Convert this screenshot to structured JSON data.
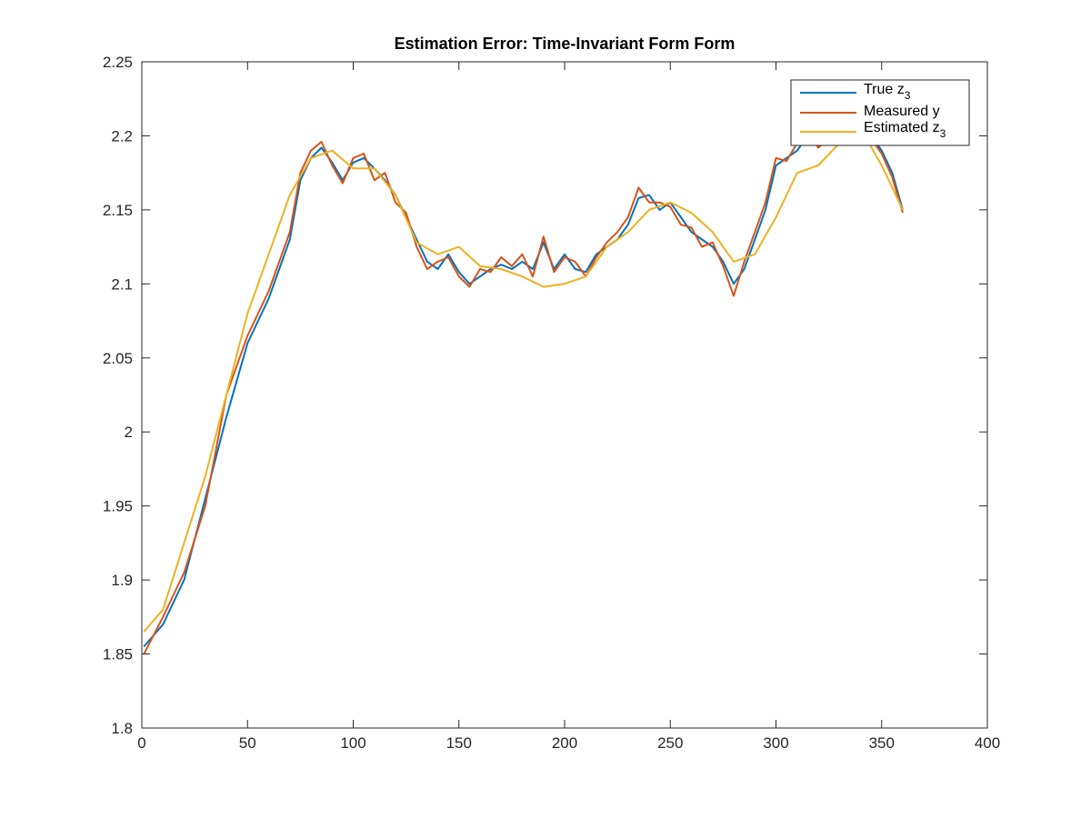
{
  "chart_data": {
    "type": "line",
    "title": "Estimation Error: Time-Invariant Form Form",
    "xlabel": "",
    "ylabel": "",
    "xlim": [
      0,
      400
    ],
    "ylim": [
      1.8,
      2.25
    ],
    "xticks": [
      0,
      50,
      100,
      150,
      200,
      250,
      300,
      350,
      400
    ],
    "yticks": [
      1.8,
      1.85,
      1.9,
      1.95,
      2.0,
      2.05,
      2.1,
      2.15,
      2.2,
      2.25
    ],
    "xtick_labels": [
      "0",
      "50",
      "100",
      "150",
      "200",
      "250",
      "300",
      "350",
      "400"
    ],
    "ytick_labels": [
      "1.8",
      "1.85",
      "1.9",
      "1.95",
      "2",
      "2.05",
      "2.1",
      "2.15",
      "2.2",
      "2.25"
    ],
    "grid": false,
    "legend_position": "top-right",
    "x_shared": [
      1,
      10,
      20,
      30,
      40,
      50,
      60,
      70,
      75,
      80,
      85,
      90,
      95,
      100,
      105,
      110,
      115,
      120,
      125,
      130,
      135,
      140,
      145,
      150,
      155,
      160,
      165,
      170,
      175,
      180,
      185,
      190,
      195,
      200,
      205,
      210,
      215,
      220,
      225,
      230,
      235,
      240,
      245,
      250,
      255,
      260,
      265,
      270,
      275,
      280,
      285,
      290,
      295,
      300,
      305,
      310,
      315,
      320,
      325,
      330,
      335,
      340,
      345,
      350,
      355,
      360
    ],
    "series": [
      {
        "name_base": "True z",
        "name_sub": "3",
        "color": "#0072BD",
        "x": [
          1,
          10,
          20,
          30,
          40,
          50,
          60,
          70,
          75,
          80,
          85,
          90,
          95,
          100,
          105,
          110,
          115,
          120,
          125,
          130,
          135,
          140,
          145,
          150,
          155,
          160,
          165,
          170,
          175,
          180,
          185,
          190,
          195,
          200,
          205,
          210,
          215,
          220,
          225,
          230,
          235,
          240,
          245,
          250,
          255,
          260,
          265,
          270,
          275,
          280,
          285,
          290,
          295,
          300,
          305,
          310,
          315,
          320,
          325,
          330,
          335,
          340,
          345,
          350,
          355,
          360
        ],
        "values": [
          1.855,
          1.87,
          1.9,
          1.955,
          2.01,
          2.06,
          2.09,
          2.13,
          2.17,
          2.185,
          2.192,
          2.182,
          2.17,
          2.182,
          2.185,
          2.178,
          2.17,
          2.16,
          2.145,
          2.13,
          2.115,
          2.11,
          2.12,
          2.108,
          2.1,
          2.105,
          2.11,
          2.113,
          2.11,
          2.115,
          2.11,
          2.128,
          2.11,
          2.12,
          2.11,
          2.108,
          2.12,
          2.125,
          2.13,
          2.14,
          2.158,
          2.16,
          2.15,
          2.155,
          2.145,
          2.135,
          2.13,
          2.125,
          2.115,
          2.1,
          2.11,
          2.13,
          2.15,
          2.18,
          2.185,
          2.19,
          2.2,
          2.195,
          2.2,
          2.21,
          2.215,
          2.205,
          2.2,
          2.19,
          2.175,
          2.15
        ]
      },
      {
        "name": "Measured y",
        "color": "#D95319",
        "x": [
          1,
          10,
          20,
          30,
          40,
          50,
          60,
          70,
          75,
          80,
          85,
          90,
          95,
          100,
          105,
          110,
          115,
          120,
          125,
          130,
          135,
          140,
          145,
          150,
          155,
          160,
          165,
          170,
          175,
          180,
          185,
          190,
          195,
          200,
          205,
          210,
          215,
          220,
          225,
          230,
          235,
          240,
          245,
          250,
          255,
          260,
          265,
          270,
          275,
          280,
          285,
          290,
          295,
          300,
          305,
          310,
          315,
          320,
          325,
          330,
          335,
          340,
          345,
          350,
          355,
          360
        ],
        "values": [
          1.85,
          1.875,
          1.905,
          1.95,
          2.025,
          2.065,
          2.095,
          2.135,
          2.175,
          2.19,
          2.196,
          2.18,
          2.168,
          2.185,
          2.188,
          2.17,
          2.175,
          2.155,
          2.148,
          2.125,
          2.11,
          2.115,
          2.118,
          2.105,
          2.098,
          2.11,
          2.108,
          2.118,
          2.112,
          2.12,
          2.105,
          2.132,
          2.108,
          2.118,
          2.115,
          2.105,
          2.118,
          2.128,
          2.135,
          2.145,
          2.165,
          2.155,
          2.155,
          2.152,
          2.14,
          2.138,
          2.125,
          2.128,
          2.112,
          2.092,
          2.115,
          2.135,
          2.155,
          2.185,
          2.183,
          2.195,
          2.205,
          2.192,
          2.198,
          2.212,
          2.218,
          2.208,
          2.198,
          2.188,
          2.172,
          2.148
        ]
      },
      {
        "name_base": "Estimated z",
        "name_sub": "3",
        "color": "#EDB120",
        "x": [
          1,
          10,
          20,
          30,
          40,
          50,
          60,
          70,
          80,
          90,
          100,
          110,
          120,
          130,
          140,
          150,
          160,
          170,
          180,
          190,
          200,
          210,
          220,
          230,
          240,
          250,
          260,
          270,
          280,
          290,
          300,
          310,
          320,
          330,
          340,
          350,
          360
        ],
        "values": [
          1.865,
          1.88,
          1.925,
          1.97,
          2.025,
          2.08,
          2.12,
          2.16,
          2.185,
          2.19,
          2.178,
          2.178,
          2.16,
          2.128,
          2.12,
          2.125,
          2.112,
          2.11,
          2.105,
          2.098,
          2.1,
          2.105,
          2.125,
          2.135,
          2.15,
          2.155,
          2.148,
          2.135,
          2.115,
          2.12,
          2.145,
          2.175,
          2.18,
          2.195,
          2.205,
          2.18,
          2.15
        ]
      }
    ]
  }
}
